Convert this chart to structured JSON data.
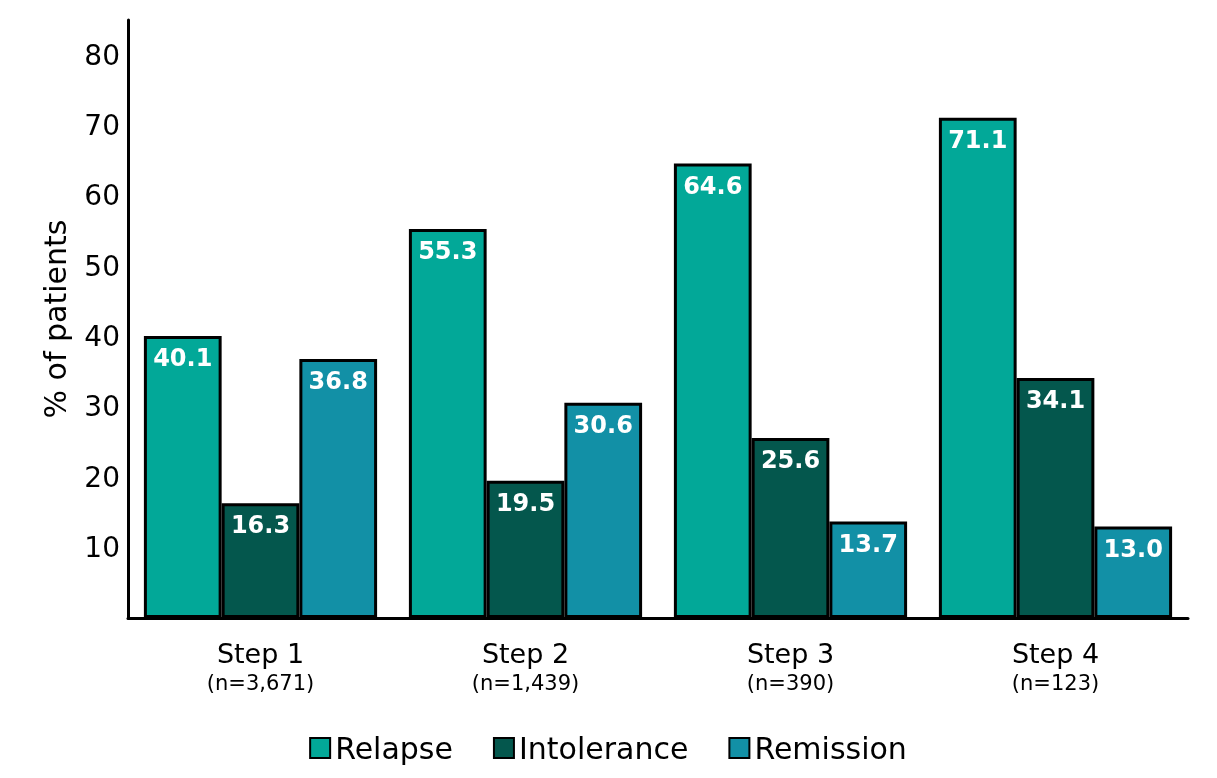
{
  "chart_data": {
    "type": "bar",
    "ylabel": "% of patients",
    "categories": [
      "Step 1\n(n=3,671)",
      "Step 2\n(n=1,439)",
      "Step 3\n(n=390)",
      "Step 4\n(n=123)"
    ],
    "series": [
      {
        "name": "Relapse",
        "color": "#02a898",
        "values": [
          40.1,
          55.3,
          64.6,
          71.1
        ],
        "value_labels": [
          "40.1",
          "55.3",
          "64.6",
          "71.1"
        ]
      },
      {
        "name": "Intolerance",
        "color": "#04574d",
        "values": [
          16.3,
          19.5,
          25.6,
          34.1
        ],
        "value_labels": [
          "16.3",
          "19.5",
          "25.6",
          "34.1"
        ]
      },
      {
        "name": "Remission",
        "color": "#1290a6",
        "values": [
          36.8,
          30.6,
          13.7,
          13.0
        ],
        "value_labels": [
          "36.8",
          "30.6",
          "13.7",
          "13.0"
        ]
      }
    ],
    "ylim": [
      0,
      85
    ],
    "yticks": [
      10,
      20,
      30,
      40,
      50,
      60,
      70,
      80
    ],
    "grid": false,
    "legend": "bottom"
  }
}
